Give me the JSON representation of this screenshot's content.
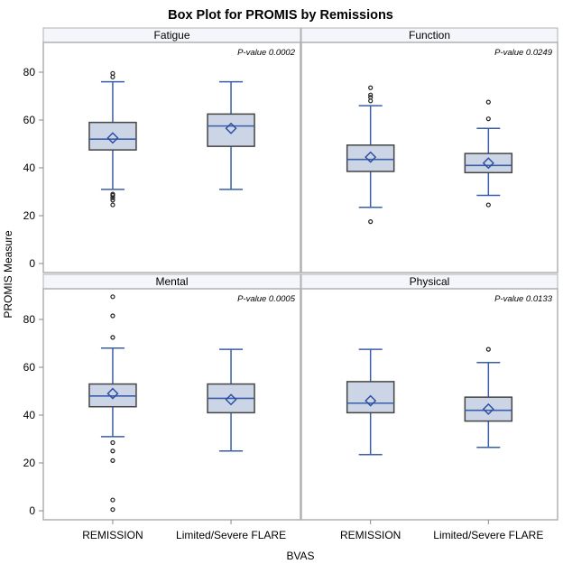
{
  "chart_data": {
    "type": "box",
    "title": "Box Plot for PROMIS by Remissions",
    "xlabel": "BVAS",
    "ylabel": "PROMIS Measure",
    "ylim": [
      -5,
      92
    ],
    "yticks": [
      0,
      20,
      40,
      60,
      80
    ],
    "categories": [
      "REMISSION",
      "Limited/Severe FLARE"
    ],
    "grid": false,
    "layout": "2x2 panel",
    "colors": {
      "box_fill": "#cbd5e6",
      "box_edge": "#444444",
      "whisker": "#3b5ea8",
      "mean_marker": "#2a4aa0",
      "outlier": "#222222",
      "strip_bg": "#f4f6fc",
      "frame": "#b0b0b0"
    },
    "panels": [
      {
        "name": "Fatigue",
        "pvalue_label": "P-value",
        "pvalue": "0.0002",
        "boxes": [
          {
            "category": "REMISSION",
            "whisker_low": 31,
            "q1": 47.5,
            "median": 52,
            "q3": 59,
            "whisker_high": 76,
            "mean": 52.5,
            "outliers": [
              78,
              79.5,
              24.5,
              26.5,
              27.5,
              28.5,
              29
            ]
          },
          {
            "category": "Limited/Severe FLARE",
            "whisker_low": 31,
            "q1": 49,
            "median": 57.5,
            "q3": 62.5,
            "whisker_high": 76,
            "mean": 56.5,
            "outliers": []
          }
        ]
      },
      {
        "name": "Function",
        "pvalue_label": "P-value",
        "pvalue": "0.0249",
        "boxes": [
          {
            "category": "REMISSION",
            "whisker_low": 23.5,
            "q1": 38.5,
            "median": 43.5,
            "q3": 49.5,
            "whisker_high": 66,
            "mean": 44.5,
            "outliers": [
              68,
              69.5,
              70.5,
              73.5,
              17.5
            ]
          },
          {
            "category": "Limited/Severe FLARE",
            "whisker_low": 28.5,
            "q1": 38,
            "median": 41,
            "q3": 46,
            "whisker_high": 56.5,
            "mean": 42,
            "outliers": [
              67.5,
              60.5,
              24.5
            ]
          }
        ]
      },
      {
        "name": "Mental",
        "pvalue_label": "P-value",
        "pvalue": "0.0005",
        "boxes": [
          {
            "category": "REMISSION",
            "whisker_low": 31,
            "q1": 43.5,
            "median": 48,
            "q3": 53,
            "whisker_high": 68,
            "mean": 49,
            "outliers": [
              89.5,
              81.5,
              72.5,
              28.5,
              25,
              21,
              4.5,
              0.5
            ]
          },
          {
            "category": "Limited/Severe FLARE",
            "whisker_low": 25,
            "q1": 41,
            "median": 47,
            "q3": 53,
            "whisker_high": 67.5,
            "mean": 46.5,
            "outliers": []
          }
        ]
      },
      {
        "name": "Physical",
        "pvalue_label": "P-value",
        "pvalue": "0.0133",
        "boxes": [
          {
            "category": "REMISSION",
            "whisker_low": 23.5,
            "q1": 41,
            "median": 45,
            "q3": 54,
            "whisker_high": 67.5,
            "mean": 46,
            "outliers": []
          },
          {
            "category": "Limited/Severe FLARE",
            "whisker_low": 26.5,
            "q1": 37.5,
            "median": 42,
            "q3": 47.5,
            "whisker_high": 62,
            "mean": 42.5,
            "outliers": [
              67.5
            ]
          }
        ]
      }
    ]
  }
}
